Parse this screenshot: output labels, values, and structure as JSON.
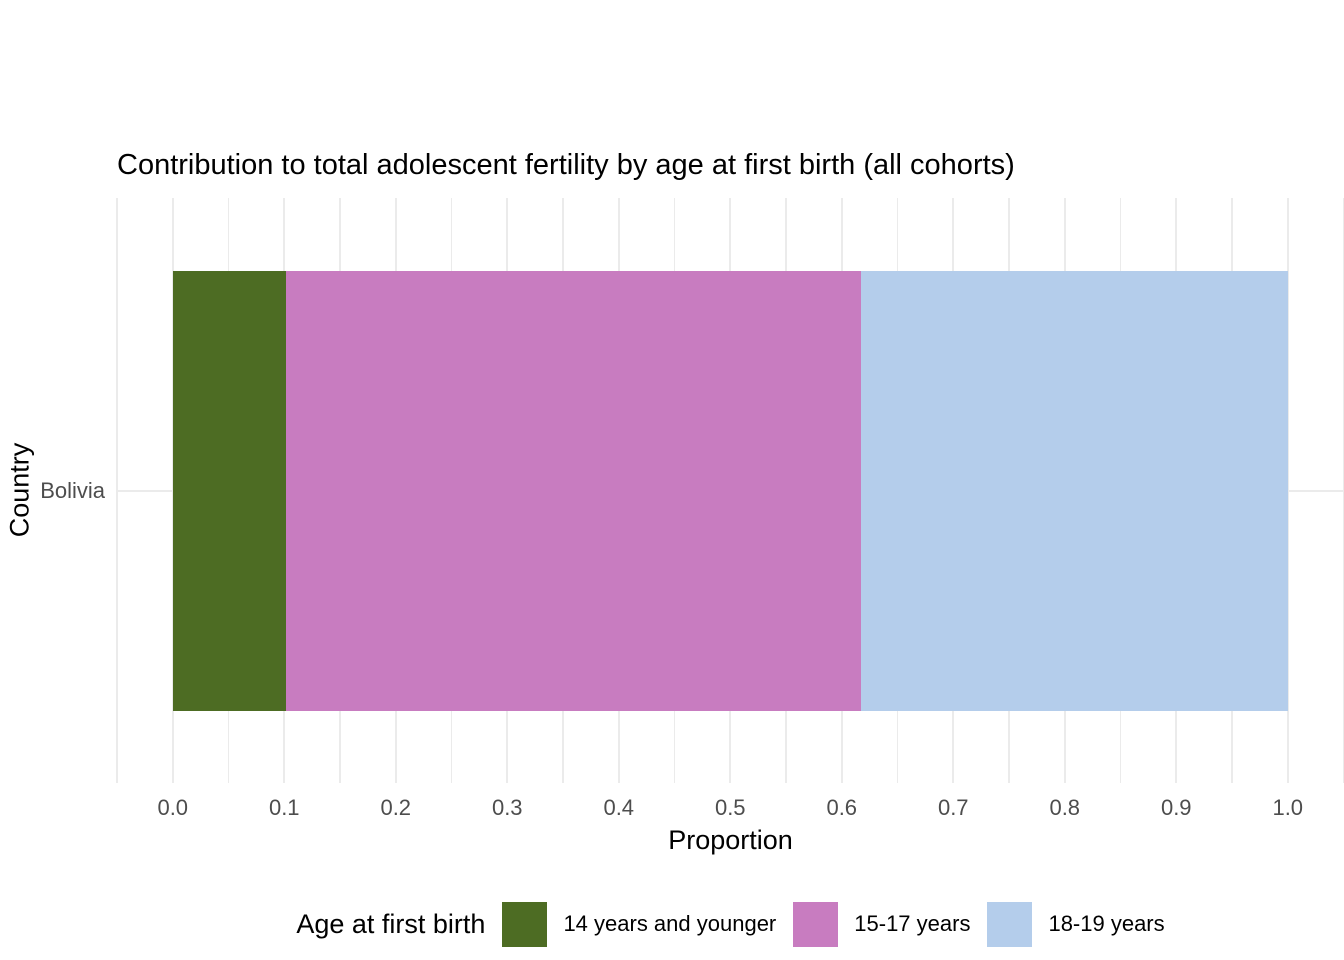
{
  "chart_data": {
    "type": "bar",
    "orientation": "horizontal",
    "stacked": true,
    "title": "Contribution to total adolescent fertility by age at first birth (all cohorts)",
    "xlabel": "Proportion",
    "ylabel": "Country",
    "categories": [
      "Bolivia"
    ],
    "series": [
      {
        "name": "14 years and younger",
        "color": "#4d6c23",
        "values": [
          0.102
        ]
      },
      {
        "name": "15-17 years",
        "color": "#c87cc0",
        "values": [
          0.515
        ]
      },
      {
        "name": "18-19 years",
        "color": "#b4cdeb",
        "values": [
          0.383
        ]
      }
    ],
    "xlim": [
      0,
      1
    ],
    "xticks": [
      0,
      0.1,
      0.2,
      0.3,
      0.4,
      0.5,
      0.6,
      0.7,
      0.8,
      0.9,
      1
    ],
    "xtick_labels": [
      "0.0",
      "0.1",
      "0.2",
      "0.3",
      "0.4",
      "0.5",
      "0.6",
      "0.7",
      "0.8",
      "0.9",
      "1.0"
    ],
    "legend": {
      "title": "Age at first birth",
      "position": "bottom"
    },
    "grid": {
      "major": true,
      "minor": true,
      "minor_step": 0.05,
      "major_color": "#ebebeb",
      "minor_color": "#ebebeb"
    },
    "background": "#ffffff",
    "axis_text_color": "#4d4d4d",
    "text_color": "#000000"
  }
}
